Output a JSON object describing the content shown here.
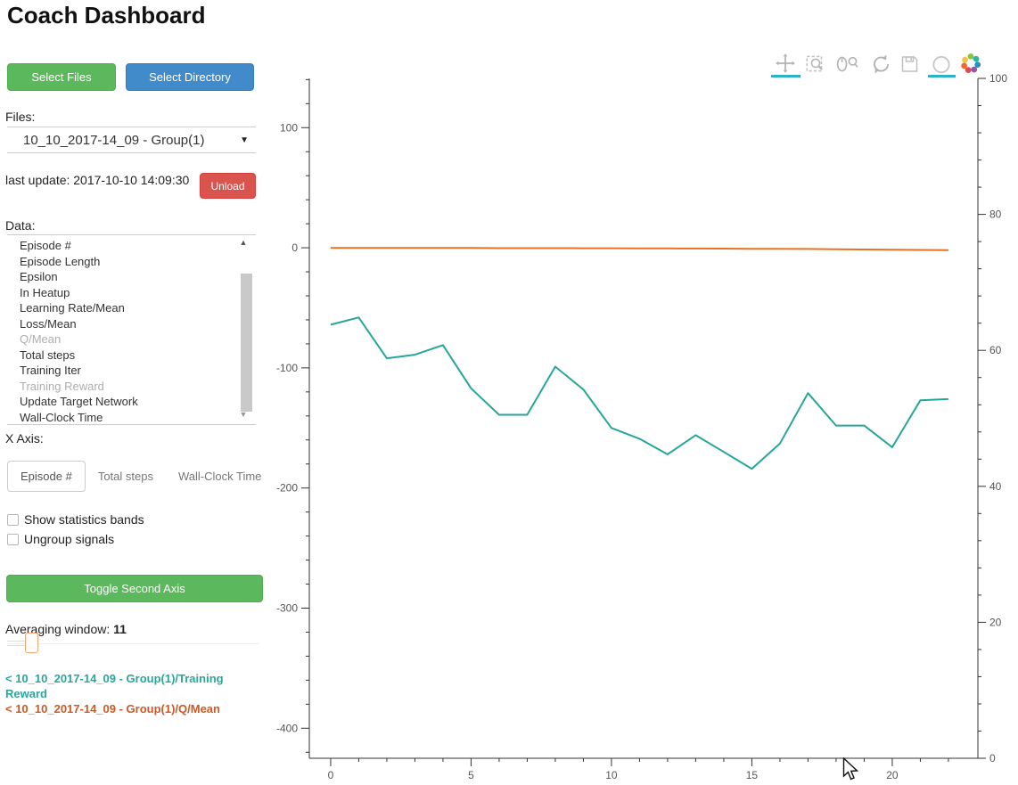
{
  "header": {
    "title": "Coach Dashboard"
  },
  "sidebar": {
    "select_files_label": "Select Files",
    "select_directory_label": "Select Directory",
    "files_label": "Files:",
    "file_select_value": "10_10_2017-14_09 - Group(1)",
    "last_update": "last update: 2017-10-10 14:09:30",
    "unload_label": "Unload",
    "data_label": "Data:",
    "data_items": [
      {
        "label": "Episode #",
        "dimmed": false
      },
      {
        "label": "Episode Length",
        "dimmed": false
      },
      {
        "label": "Epsilon",
        "dimmed": false
      },
      {
        "label": "In Heatup",
        "dimmed": false
      },
      {
        "label": "Learning Rate/Mean",
        "dimmed": false
      },
      {
        "label": "Loss/Mean",
        "dimmed": false
      },
      {
        "label": "Q/Mean",
        "dimmed": true
      },
      {
        "label": "Total steps",
        "dimmed": false
      },
      {
        "label": "Training Iter",
        "dimmed": false
      },
      {
        "label": "Training Reward",
        "dimmed": true
      },
      {
        "label": "Update Target Network",
        "dimmed": false
      },
      {
        "label": "Wall-Clock Time",
        "dimmed": false
      }
    ],
    "x_axis_label": "X Axis:",
    "x_axis_options": [
      "Episode #",
      "Total steps",
      "Wall-Clock Time"
    ],
    "x_axis_selected": "Episode #",
    "checkboxes": [
      {
        "label": "Show statistics bands",
        "checked": false
      },
      {
        "label": "Ungroup signals",
        "checked": false
      }
    ],
    "toggle_second_axis_label": "Toggle Second Axis",
    "averaging_window_label": "Averaging window:",
    "averaging_window_value": "11",
    "legend": [
      {
        "label": "< 10_10_2017-14_09 - Group(1)/Training Reward",
        "color": "#2aa79a"
      },
      {
        "label": "< 10_10_2017-14_09 - Group(1)/Q/Mean",
        "color": "#cb5a27"
      }
    ]
  },
  "toolbar": {
    "tools": [
      {
        "name": "pan",
        "active": true
      },
      {
        "name": "box-zoom",
        "active": false
      },
      {
        "name": "wheel-zoom",
        "active": false
      },
      {
        "name": "reset",
        "active": false
      },
      {
        "name": "save",
        "active": false
      },
      {
        "name": "hover",
        "active": true
      },
      {
        "name": "bokeh-logo",
        "active": false
      }
    ],
    "active_color": "#2db3c7",
    "icon_color": "#b3b3b3"
  },
  "chart_data": {
    "type": "line",
    "title": "",
    "xlabel": "",
    "ylabel": "",
    "grid": false,
    "legend_position": "sidebar",
    "x": [
      0,
      1,
      2,
      3,
      4,
      5,
      6,
      7,
      8,
      9,
      10,
      11,
      12,
      13,
      14,
      15,
      16,
      17,
      18,
      19,
      20,
      21,
      22
    ],
    "series": [
      {
        "name": "10_10_2017-14_09 - Group(1)/Training Reward",
        "color": "#26a69a",
        "values": [
          -64,
          -58,
          -92,
          -89,
          -81,
          -117,
          -139,
          -139,
          -99,
          -118,
          -150,
          -159,
          -172,
          -156,
          -170,
          -184,
          -163,
          -121,
          -148,
          -148,
          -166,
          -127,
          -126
        ]
      },
      {
        "name": "10_10_2017-14_09 - Group(1)/Q/Mean",
        "color": "#e6731e",
        "values": [
          -0.1,
          -0.1,
          -0.1,
          -0.2,
          -0.2,
          -0.2,
          -0.3,
          -0.3,
          -0.3,
          -0.4,
          -0.4,
          -0.5,
          -0.5,
          -0.6,
          -0.7,
          -0.8,
          -0.9,
          -1.0,
          -1.2,
          -1.4,
          -1.6,
          -1.8,
          -2.0
        ]
      }
    ],
    "xlim": [
      -0.76,
      23.05
    ],
    "left_ylim": [
      -425,
      141
    ],
    "right_ylim": [
      0,
      100
    ],
    "x_ticks": [
      0,
      5,
      10,
      15,
      20
    ],
    "left_y_ticks": [
      100,
      0,
      -100,
      -200,
      -300,
      -400
    ],
    "right_y_ticks": [
      100,
      80,
      60,
      40,
      20,
      0
    ]
  }
}
